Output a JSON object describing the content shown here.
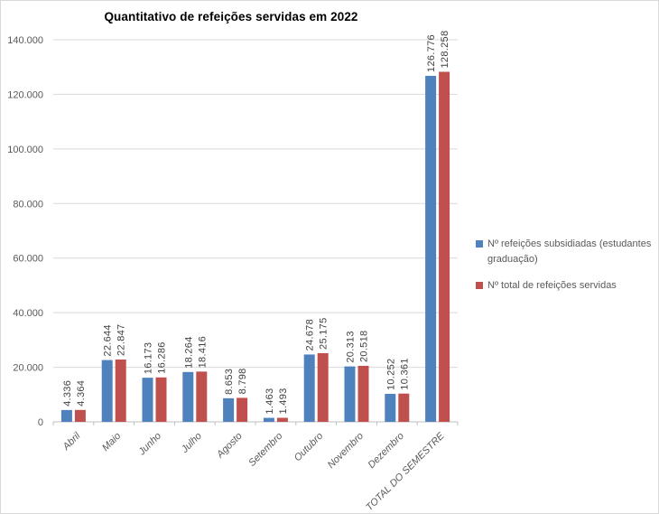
{
  "window": {
    "background": "#ffffff",
    "border_color": "#d9d9d9"
  },
  "chart_data": {
    "type": "bar",
    "title": "Quantitativo de refeições servidas em 2022",
    "xlabel": "",
    "ylabel": "",
    "categories": [
      "Abril",
      "Maio",
      "Junho",
      "Julho",
      "Agosto",
      "Setembro",
      "Outubro",
      "Novembro",
      "Dezembro",
      "TOTAL DO SEMESTRE"
    ],
    "series": [
      {
        "name": "Nº refeições subsidiadas (estudantes graduação)",
        "color": "#4F81BD",
        "values": [
          4336,
          22644,
          16173,
          18264,
          8653,
          1463,
          24678,
          20313,
          10252,
          126776
        ],
        "labels": [
          "4.336",
          "22.644",
          "16.173",
          "18.264",
          "8.653",
          "1.463",
          "24.678",
          "20.313",
          "10.252",
          "126.776"
        ]
      },
      {
        "name": "Nº total de refeições servidas",
        "color": "#C0504D",
        "values": [
          4364,
          22847,
          16286,
          18416,
          8798,
          1493,
          25175,
          20518,
          10361,
          128258
        ],
        "labels": [
          "4.364",
          "22.847",
          "16.286",
          "18.416",
          "8.798",
          "1.493",
          "25.175",
          "20.518",
          "10.361",
          "128.258"
        ]
      }
    ],
    "ylim": [
      0,
      140000
    ],
    "ytick_step": 20000,
    "ytick_labels": [
      "0",
      "20.000",
      "40.000",
      "60.000",
      "80.000",
      "100.000",
      "120.000",
      "140.000"
    ],
    "grid": true,
    "data_labels": "rotated-vertical",
    "x_labels_style": "rotated-45-italic",
    "legend_position": "right"
  },
  "colors": {
    "gridline": "#D9D9D9",
    "axis_line": "#BFBFBF",
    "axis_text": "#595959",
    "value_text": "#3F3F3F",
    "title_text": "#000000",
    "legend_text": "#595959"
  }
}
